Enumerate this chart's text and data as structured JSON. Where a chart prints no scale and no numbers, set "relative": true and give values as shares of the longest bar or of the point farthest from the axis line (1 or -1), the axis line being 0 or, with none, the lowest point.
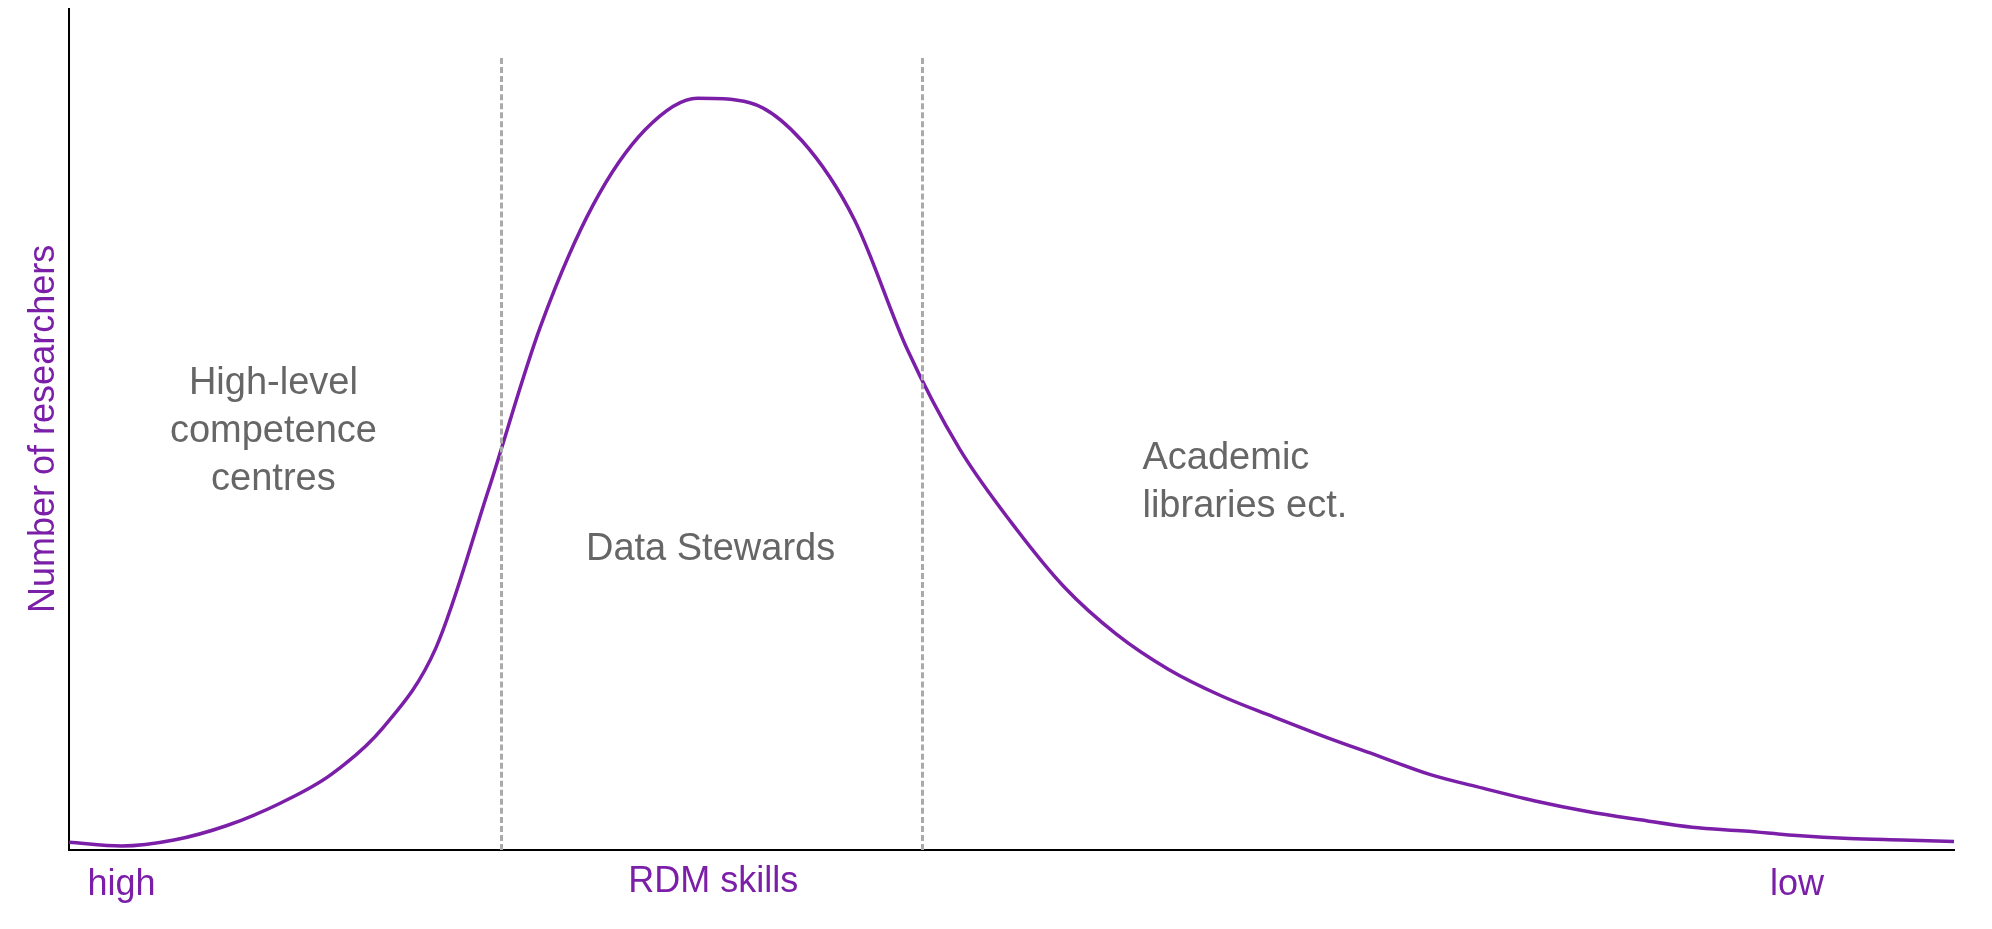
{
  "chart_data": {
    "type": "line",
    "relative": true,
    "xlabel": "RDM skills",
    "ylabel": "Number of researchers",
    "categories": [
      null,
      "high",
      null,
      null,
      null,
      null,
      null,
      null,
      null,
      null,
      null,
      null,
      null,
      null,
      null,
      null,
      null,
      null,
      null,
      null,
      null,
      null,
      null,
      null,
      null,
      null,
      null,
      null,
      null,
      null,
      null,
      null,
      null,
      "low",
      null,
      null,
      null
    ],
    "series": [
      {
        "color": "#7b1fa8",
        "values": [
          0.01,
          0.005,
          0.013,
          0.032,
          0.061,
          0.1,
          0.163,
          0.268,
          0.477,
          0.696,
          0.857,
          0.958,
          1,
          0.994,
          0.943,
          0.838,
          0.667,
          0.534,
          0.435,
          0.35,
          0.287,
          0.24,
          0.205,
          0.177,
          0.15,
          0.125,
          0.1,
          0.082,
          0.065,
          0.051,
          0.04,
          0.03,
          0.025,
          0.019,
          0.015,
          0.013,
          0.011
        ]
      }
    ],
    "annotations": [
      "High-level\ncompetence\ncentres",
      "Data Stewards",
      "Academic\nlibraries ect."
    ],
    "grid": false,
    "legend": false,
    "marker": "none",
    "line_style": "solid"
  }
}
